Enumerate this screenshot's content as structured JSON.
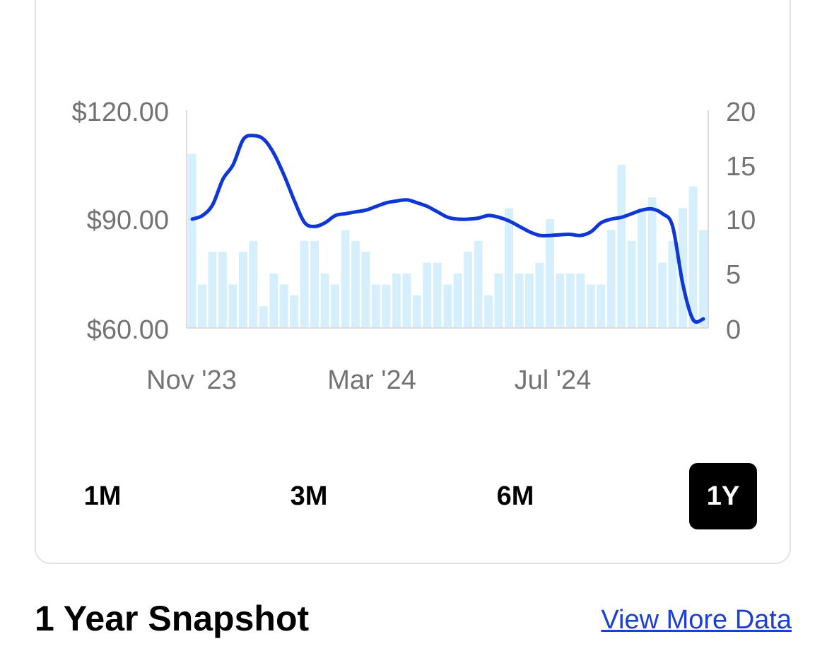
{
  "chart_data": {
    "type": "line",
    "title": "",
    "xlabel": "",
    "ylabel": "",
    "x_ticks": [
      "Nov '23",
      "Mar '24",
      "Jul '24"
    ],
    "y_left": {
      "ticks": [
        "$120.00",
        "$90.00",
        "$60.00"
      ],
      "range": [
        60,
        120
      ]
    },
    "y_right": {
      "ticks": [
        "20",
        "15",
        "10",
        "5",
        "0"
      ],
      "range": [
        0,
        20
      ]
    },
    "grid": false,
    "line_color": "#0f37d6",
    "bar_color": "#d5effc",
    "series": [
      {
        "type": "line",
        "axis": "left",
        "values": [
          90.0,
          91.0,
          94.0,
          101.0,
          105.0,
          112.0,
          113.0,
          112.0,
          108.0,
          102.0,
          95.0,
          89.0,
          88.0,
          89.0,
          91.0,
          91.5,
          92.0,
          92.5,
          93.5,
          94.5,
          95.0,
          95.3,
          94.5,
          93.5,
          92.0,
          90.5,
          90.0,
          90.0,
          90.3,
          91.0,
          90.5,
          89.5,
          88.0,
          86.5,
          85.5,
          85.5,
          85.7,
          85.8,
          85.5,
          86.5,
          89.0,
          90.0,
          90.5,
          91.5,
          92.5,
          92.8,
          91.5,
          88.0,
          72.0,
          62.3,
          62.5
        ]
      },
      {
        "type": "bar",
        "axis": "right",
        "values": [
          16,
          4,
          7,
          7,
          4,
          7,
          8,
          2,
          5,
          4,
          3,
          8,
          8,
          5,
          4,
          9,
          8,
          7,
          4,
          4,
          5,
          5,
          3,
          6,
          6,
          4,
          5,
          7,
          8,
          3,
          5,
          11,
          5,
          5,
          6,
          10,
          5,
          5,
          5,
          4,
          4,
          9,
          15,
          8,
          11,
          12,
          6,
          8,
          11,
          13,
          9
        ]
      }
    ]
  },
  "range_buttons": [
    {
      "label": "1M",
      "active": false
    },
    {
      "label": "3M",
      "active": false
    },
    {
      "label": "6M",
      "active": false
    },
    {
      "label": "1Y",
      "active": true
    }
  ],
  "snapshot": {
    "title": "1 Year Snapshot",
    "link": "View More Data"
  }
}
